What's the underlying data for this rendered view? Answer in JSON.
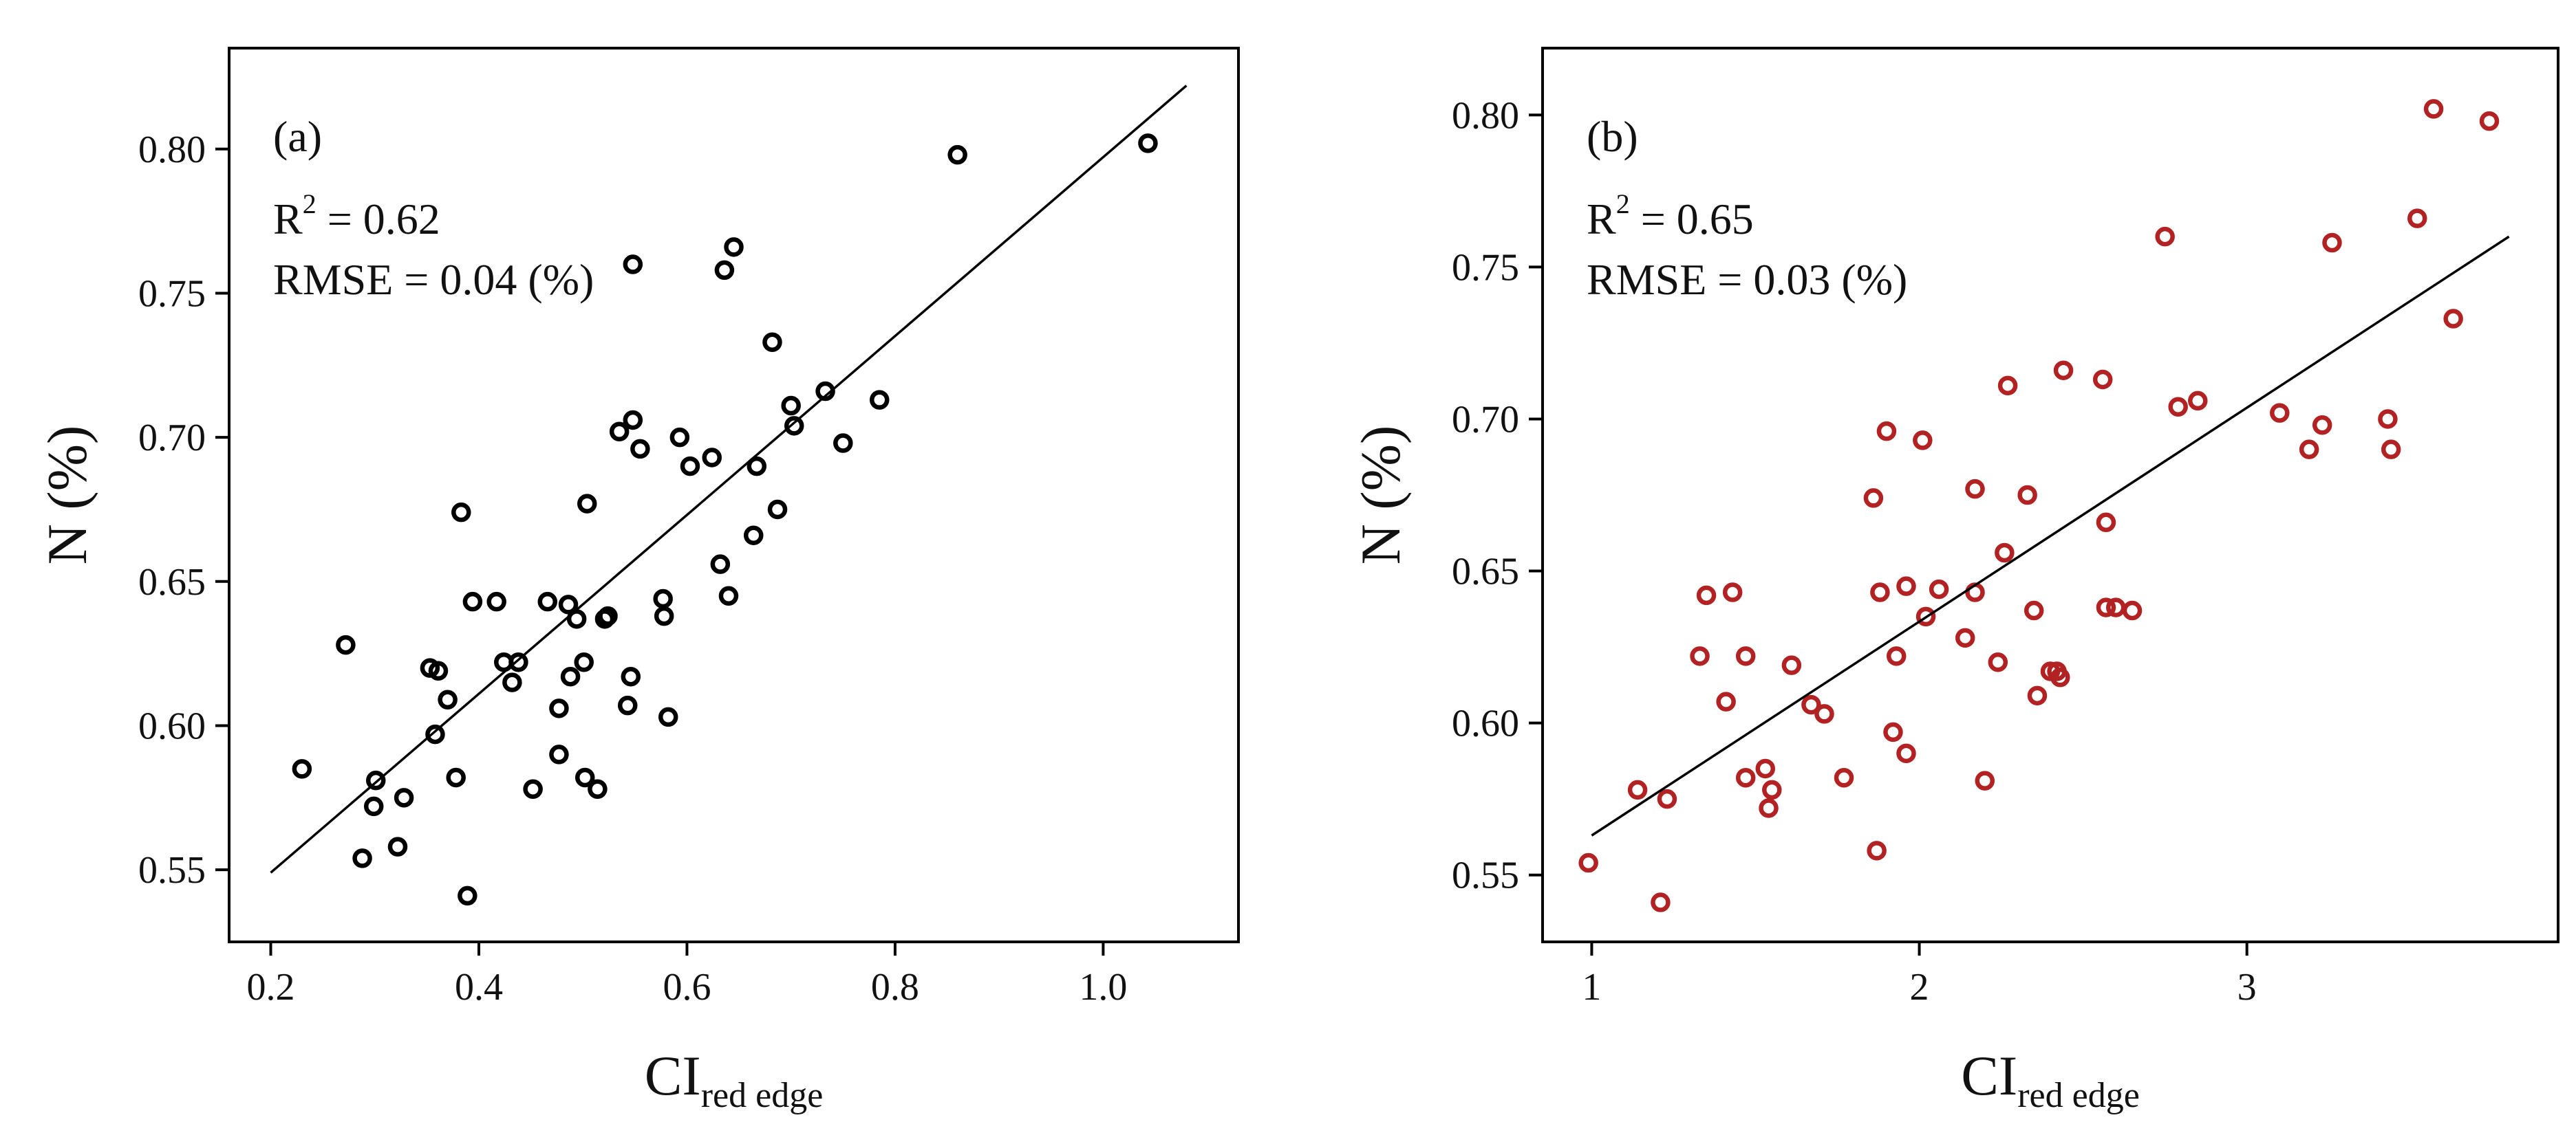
{
  "colors": {
    "panel_a_marker": "#000000",
    "panel_b_marker": "#b22222",
    "fit_line": "#000000"
  },
  "chart_data": [
    {
      "type": "scatter",
      "panel_label": "(a)",
      "xlabel_main": "CI",
      "xlabel_sub": "red edge",
      "ylabel": "N (%)",
      "xlim": [
        0.16,
        1.13
      ],
      "ylim": [
        0.525,
        0.835
      ],
      "xticks": [
        0.2,
        0.4,
        0.6,
        0.8,
        1.0
      ],
      "xtick_labels": [
        "0.2",
        "0.4",
        "0.6",
        "0.8",
        "1.0"
      ],
      "yticks": [
        0.55,
        0.6,
        0.65,
        0.7,
        0.75,
        0.8
      ],
      "ytick_labels": [
        "0.55",
        "0.60",
        "0.65",
        "0.70",
        "0.75",
        "0.80"
      ],
      "r2_prefix": "R",
      "r2_sup": "2",
      "r2_value": " = 0.62",
      "rmse": "RMSE = 0.04 (%)",
      "fit": {
        "x": [
          0.2,
          1.08
        ],
        "y": [
          0.549,
          0.822
        ]
      },
      "points": [
        {
          "x": 0.23,
          "y": 0.585
        },
        {
          "x": 0.272,
          "y": 0.628
        },
        {
          "x": 0.288,
          "y": 0.554
        },
        {
          "x": 0.299,
          "y": 0.572
        },
        {
          "x": 0.301,
          "y": 0.581
        },
        {
          "x": 0.322,
          "y": 0.558
        },
        {
          "x": 0.328,
          "y": 0.575
        },
        {
          "x": 0.353,
          "y": 0.62
        },
        {
          "x": 0.358,
          "y": 0.597
        },
        {
          "x": 0.361,
          "y": 0.619
        },
        {
          "x": 0.37,
          "y": 0.609
        },
        {
          "x": 0.378,
          "y": 0.582
        },
        {
          "x": 0.383,
          "y": 0.674
        },
        {
          "x": 0.389,
          "y": 0.541
        },
        {
          "x": 0.394,
          "y": 0.643
        },
        {
          "x": 0.417,
          "y": 0.643
        },
        {
          "x": 0.424,
          "y": 0.622
        },
        {
          "x": 0.432,
          "y": 0.615
        },
        {
          "x": 0.438,
          "y": 0.622
        },
        {
          "x": 0.452,
          "y": 0.578
        },
        {
          "x": 0.466,
          "y": 0.643
        },
        {
          "x": 0.477,
          "y": 0.606
        },
        {
          "x": 0.477,
          "y": 0.59
        },
        {
          "x": 0.486,
          "y": 0.642
        },
        {
          "x": 0.488,
          "y": 0.617
        },
        {
          "x": 0.494,
          "y": 0.637
        },
        {
          "x": 0.501,
          "y": 0.622
        },
        {
          "x": 0.502,
          "y": 0.582
        },
        {
          "x": 0.504,
          "y": 0.677
        },
        {
          "x": 0.514,
          "y": 0.578
        },
        {
          "x": 0.521,
          "y": 0.637
        },
        {
          "x": 0.524,
          "y": 0.638
        },
        {
          "x": 0.535,
          "y": 0.702
        },
        {
          "x": 0.543,
          "y": 0.607
        },
        {
          "x": 0.546,
          "y": 0.617
        },
        {
          "x": 0.548,
          "y": 0.76
        },
        {
          "x": 0.548,
          "y": 0.706
        },
        {
          "x": 0.555,
          "y": 0.696
        },
        {
          "x": 0.577,
          "y": 0.644
        },
        {
          "x": 0.578,
          "y": 0.638
        },
        {
          "x": 0.582,
          "y": 0.603
        },
        {
          "x": 0.593,
          "y": 0.7
        },
        {
          "x": 0.603,
          "y": 0.69
        },
        {
          "x": 0.624,
          "y": 0.693
        },
        {
          "x": 0.632,
          "y": 0.656
        },
        {
          "x": 0.636,
          "y": 0.758
        },
        {
          "x": 0.64,
          "y": 0.645
        },
        {
          "x": 0.645,
          "y": 0.766
        },
        {
          "x": 0.664,
          "y": 0.666
        },
        {
          "x": 0.667,
          "y": 0.69
        },
        {
          "x": 0.682,
          "y": 0.733
        },
        {
          "x": 0.687,
          "y": 0.675
        },
        {
          "x": 0.7,
          "y": 0.711
        },
        {
          "x": 0.703,
          "y": 0.704
        },
        {
          "x": 0.733,
          "y": 0.716
        },
        {
          "x": 0.75,
          "y": 0.698
        },
        {
          "x": 0.785,
          "y": 0.713
        },
        {
          "x": 0.86,
          "y": 0.798
        },
        {
          "x": 1.043,
          "y": 0.802
        }
      ]
    },
    {
      "type": "scatter",
      "panel_label": "(b)",
      "xlabel_main": "CI",
      "xlabel_sub": "red edge",
      "ylabel": "N (%)",
      "xlim": [
        0.85,
        3.95
      ],
      "ylim": [
        0.528,
        0.822
      ],
      "xticks": [
        1,
        2,
        3
      ],
      "xtick_labels": [
        "1",
        "2",
        "3"
      ],
      "yticks": [
        0.55,
        0.6,
        0.65,
        0.7,
        0.75,
        0.8
      ],
      "ytick_labels": [
        "0.55",
        "0.60",
        "0.65",
        "0.70",
        "0.75",
        "0.80"
      ],
      "r2_prefix": "R",
      "r2_sup": "2",
      "r2_value": " = 0.65",
      "rmse": "RMSE = 0.03 (%)",
      "fit": {
        "x": [
          1.0,
          3.8
        ],
        "y": [
          0.563,
          0.76
        ]
      },
      "points": [
        {
          "x": 0.99,
          "y": 0.554
        },
        {
          "x": 1.14,
          "y": 0.578
        },
        {
          "x": 1.21,
          "y": 0.541
        },
        {
          "x": 1.23,
          "y": 0.575
        },
        {
          "x": 1.33,
          "y": 0.622
        },
        {
          "x": 1.35,
          "y": 0.642
        },
        {
          "x": 1.41,
          "y": 0.607
        },
        {
          "x": 1.43,
          "y": 0.643
        },
        {
          "x": 1.47,
          "y": 0.622
        },
        {
          "x": 1.47,
          "y": 0.582
        },
        {
          "x": 1.53,
          "y": 0.585
        },
        {
          "x": 1.54,
          "y": 0.572
        },
        {
          "x": 1.55,
          "y": 0.578
        },
        {
          "x": 1.61,
          "y": 0.619
        },
        {
          "x": 1.67,
          "y": 0.606
        },
        {
          "x": 1.71,
          "y": 0.603
        },
        {
          "x": 1.77,
          "y": 0.582
        },
        {
          "x": 1.86,
          "y": 0.674
        },
        {
          "x": 1.87,
          "y": 0.558
        },
        {
          "x": 1.88,
          "y": 0.643
        },
        {
          "x": 1.9,
          "y": 0.696
        },
        {
          "x": 1.92,
          "y": 0.597
        },
        {
          "x": 1.93,
          "y": 0.622
        },
        {
          "x": 1.96,
          "y": 0.59
        },
        {
          "x": 1.96,
          "y": 0.645
        },
        {
          "x": 2.01,
          "y": 0.693
        },
        {
          "x": 2.02,
          "y": 0.635
        },
        {
          "x": 2.06,
          "y": 0.644
        },
        {
          "x": 2.14,
          "y": 0.628
        },
        {
          "x": 2.17,
          "y": 0.677
        },
        {
          "x": 2.17,
          "y": 0.643
        },
        {
          "x": 2.2,
          "y": 0.581
        },
        {
          "x": 2.24,
          "y": 0.62
        },
        {
          "x": 2.26,
          "y": 0.656
        },
        {
          "x": 2.27,
          "y": 0.711
        },
        {
          "x": 2.33,
          "y": 0.675
        },
        {
          "x": 2.35,
          "y": 0.637
        },
        {
          "x": 2.36,
          "y": 0.609
        },
        {
          "x": 2.4,
          "y": 0.617
        },
        {
          "x": 2.42,
          "y": 0.617
        },
        {
          "x": 2.43,
          "y": 0.615
        },
        {
          "x": 2.44,
          "y": 0.716
        },
        {
          "x": 2.56,
          "y": 0.713
        },
        {
          "x": 2.57,
          "y": 0.666
        },
        {
          "x": 2.57,
          "y": 0.638
        },
        {
          "x": 2.6,
          "y": 0.638
        },
        {
          "x": 2.65,
          "y": 0.637
        },
        {
          "x": 2.75,
          "y": 0.76
        },
        {
          "x": 2.79,
          "y": 0.704
        },
        {
          "x": 2.85,
          "y": 0.706
        },
        {
          "x": 3.1,
          "y": 0.702
        },
        {
          "x": 3.19,
          "y": 0.69
        },
        {
          "x": 3.23,
          "y": 0.698
        },
        {
          "x": 3.26,
          "y": 0.758
        },
        {
          "x": 3.43,
          "y": 0.7
        },
        {
          "x": 3.44,
          "y": 0.69
        },
        {
          "x": 3.52,
          "y": 0.766
        },
        {
          "x": 3.57,
          "y": 0.802
        },
        {
          "x": 3.63,
          "y": 0.733
        },
        {
          "x": 3.74,
          "y": 0.798
        }
      ]
    }
  ]
}
